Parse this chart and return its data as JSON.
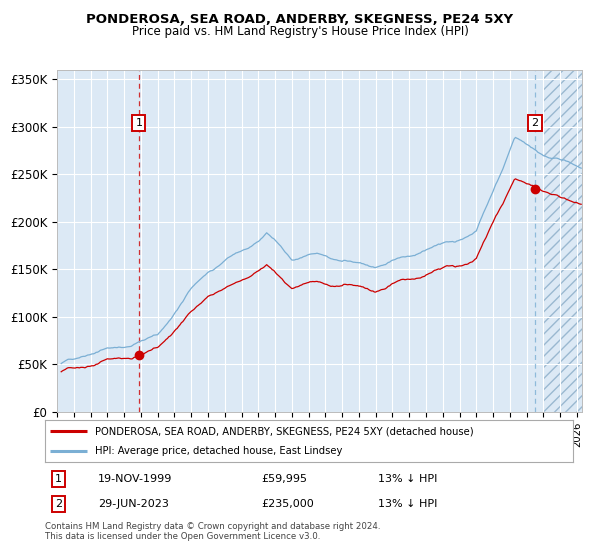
{
  "title": "PONDEROSA, SEA ROAD, ANDERBY, SKEGNESS, PE24 5XY",
  "subtitle": "Price paid vs. HM Land Registry's House Price Index (HPI)",
  "legend_line1": "PONDEROSA, SEA ROAD, ANDERBY, SKEGNESS, PE24 5XY (detached house)",
  "legend_line2": "HPI: Average price, detached house, East Lindsey",
  "footnote": "Contains HM Land Registry data © Crown copyright and database right 2024.\nThis data is licensed under the Open Government Licence v3.0.",
  "ann1_date": "19-NOV-1999",
  "ann1_price": "£59,995",
  "ann1_pct": "13% ↓ HPI",
  "ann2_date": "29-JUN-2023",
  "ann2_price": "£235,000",
  "ann2_pct": "13% ↓ HPI",
  "sale1_year": 1999.88,
  "sale1_val": 59995,
  "sale2_year": 2023.49,
  "sale2_val": 235000,
  "hpi_color": "#7bafd4",
  "price_color": "#cc0000",
  "bg_color": "#dce9f5",
  "ylim": [
    0,
    360000
  ],
  "xlim_start": 1995.25,
  "xlim_end": 2026.3,
  "future_start": 2024.0,
  "yticks": [
    0,
    50000,
    100000,
    150000,
    200000,
    250000,
    300000,
    350000
  ],
  "ytick_labels": [
    "£0",
    "£50K",
    "£100K",
    "£150K",
    "£200K",
    "£250K",
    "£300K",
    "£350K"
  ],
  "xticks": [
    1995,
    1996,
    1997,
    1998,
    1999,
    2000,
    2001,
    2002,
    2003,
    2004,
    2005,
    2006,
    2007,
    2008,
    2009,
    2010,
    2011,
    2012,
    2013,
    2014,
    2015,
    2016,
    2017,
    2018,
    2019,
    2020,
    2021,
    2022,
    2023,
    2024,
    2025,
    2026
  ]
}
